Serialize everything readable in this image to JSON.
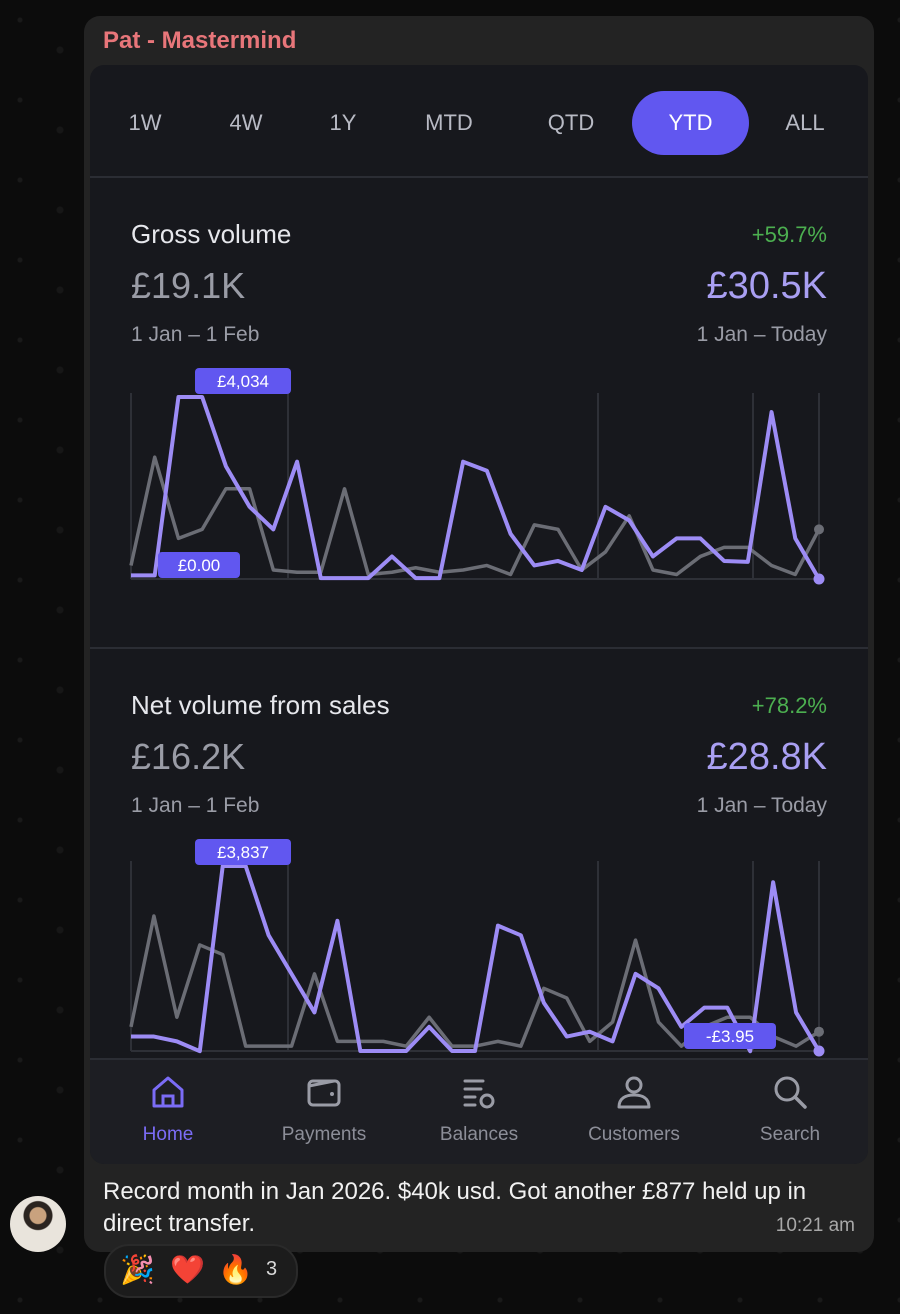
{
  "chat": {
    "sender": "Pat - Mastermind",
    "message": "Record month in Jan 2026. $40k usd. Got another £877 held up in direct transfer.",
    "time": "10:21 am",
    "reactions": [
      {
        "icon": "party-popper-icon",
        "glyph": "🎉"
      },
      {
        "icon": "heart-icon",
        "glyph": "❤️"
      },
      {
        "icon": "fire-icon",
        "glyph": "🔥"
      }
    ],
    "reaction_count": "3"
  },
  "app": {
    "tabs": [
      "1W",
      "4W",
      "1Y",
      "MTD",
      "QTD",
      "YTD",
      "ALL"
    ],
    "active_tab": "YTD",
    "gross": {
      "title": "Gross volume",
      "change": "+59.7%",
      "previous_value": "£19.1K",
      "current_value": "£30.5K",
      "previous_range": "1 Jan – 1 Feb",
      "current_range": "1 Jan – Today",
      "max_label": "£4,034",
      "min_label": "£0.00"
    },
    "net": {
      "title": "Net volume from sales",
      "change": "+78.2%",
      "previous_value": "£16.2K",
      "current_value": "£28.8K",
      "previous_range": "1 Jan – 1 Feb",
      "current_range": "1 Jan – Today",
      "max_label": "£3,837",
      "min_label": "-£3.95"
    },
    "nav": [
      {
        "label": "Home",
        "icon": "home-icon",
        "active": true
      },
      {
        "label": "Payments",
        "icon": "wallet-icon",
        "active": false
      },
      {
        "label": "Balances",
        "icon": "balances-icon",
        "active": false
      },
      {
        "label": "Customers",
        "icon": "person-icon",
        "active": false
      },
      {
        "label": "Search",
        "icon": "search-icon",
        "active": false
      }
    ],
    "colors": {
      "accent": "#6157f0",
      "current_series": "#9d8cf5",
      "previous_series": "#6b6d75",
      "positive": "#4caf50"
    }
  },
  "chart_data": [
    {
      "type": "line",
      "title": "Gross volume",
      "series": [
        {
          "values": [
            80,
            80,
            4034,
            4034,
            2500,
            1600,
            1100,
            2600,
            20,
            20,
            20,
            500,
            20,
            20,
            2600,
            2400,
            1000,
            300,
            400,
            200,
            1600,
            1300,
            500,
            900,
            900,
            400,
            380,
            3700,
            900,
            0
          ]
        },
        {
          "values": [
            300,
            2700,
            900,
            1100,
            2000,
            2000,
            200,
            150,
            150,
            2000,
            100,
            150,
            250,
            150,
            200,
            300,
            100,
            1200,
            1100,
            200,
            600,
            1400,
            200,
            100,
            500,
            700,
            700,
            300,
            100,
            1100
          ]
        }
      ]
    },
    {
      "type": "line",
      "title": "Net volume from sales",
      "series": [
        {
          "values": [
            300,
            300,
            200,
            -4,
            3837,
            3837,
            2400,
            1600,
            800,
            2700,
            0,
            0,
            0,
            500,
            0,
            0,
            2600,
            2400,
            1000,
            300,
            400,
            200,
            1600,
            1300,
            500,
            900,
            900,
            -4,
            3500,
            800,
            0
          ]
        },
        {
          "values": [
            500,
            2800,
            700,
            2200,
            2000,
            100,
            100,
            100,
            1600,
            200,
            200,
            200,
            100,
            700,
            100,
            100,
            200,
            100,
            1300,
            1100,
            200,
            600,
            2300,
            600,
            100,
            500,
            700,
            700,
            300,
            100,
            400
          ]
        }
      ]
    }
  ]
}
